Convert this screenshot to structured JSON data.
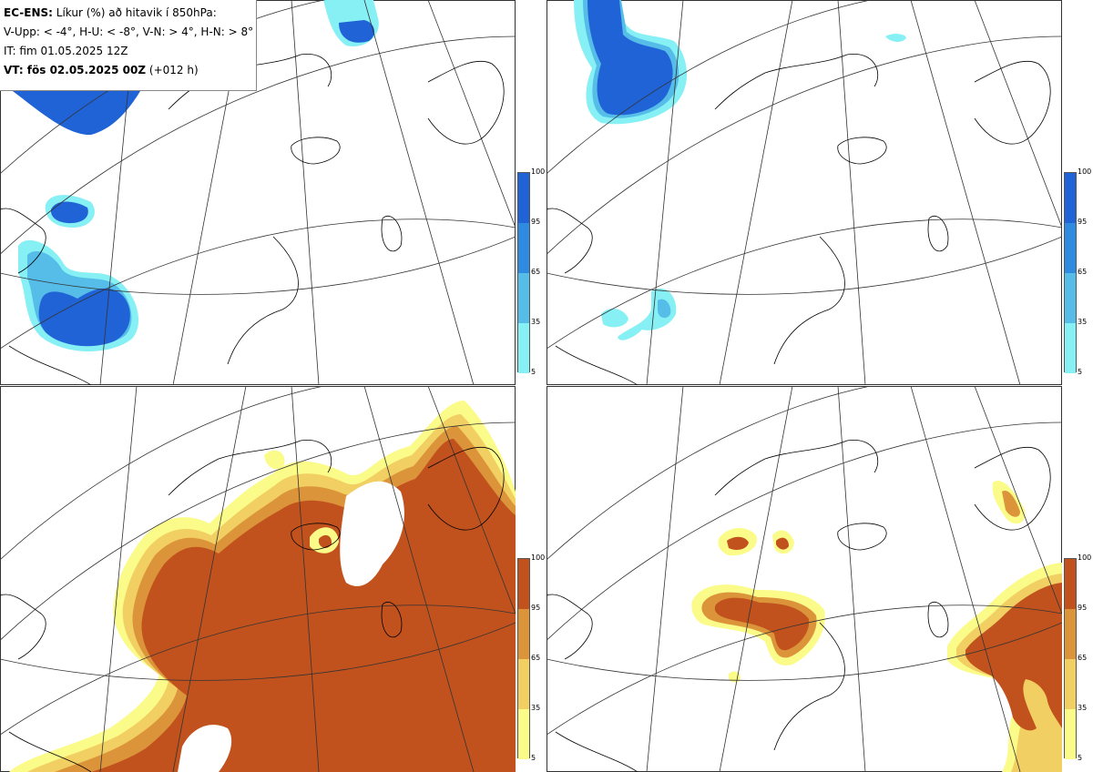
{
  "header": {
    "model": "EC-ENS:",
    "title": " Líkur (%) að hitavik í 850hPa:",
    "legend_line": "V-Upp: < -4°, H-U: < -8°, V-N: > 4°, H-N: > 8°",
    "init_time": "IT: fim 01.05.2025 12Z",
    "valid_prefix": "VT: fös 02.05.2025 00Z",
    "valid_suffix": " (+012 h)"
  },
  "colorbars": {
    "ticks": [
      "100",
      "95",
      "65",
      "35",
      "5"
    ],
    "cold": {
      "colors": [
        "#1f63d6",
        "#2f8be0",
        "#55bde8",
        "#86f0f5"
      ]
    },
    "warm": {
      "colors": [
        "#c1521d",
        "#dc943a",
        "#f1cf62",
        "#fbfb8a"
      ]
    }
  },
  "panels": [
    {
      "id": "top-left",
      "scheme": "cold"
    },
    {
      "id": "top-right",
      "scheme": "cold"
    },
    {
      "id": "bottom-left",
      "scheme": "warm"
    },
    {
      "id": "bottom-right",
      "scheme": "warm"
    }
  ]
}
